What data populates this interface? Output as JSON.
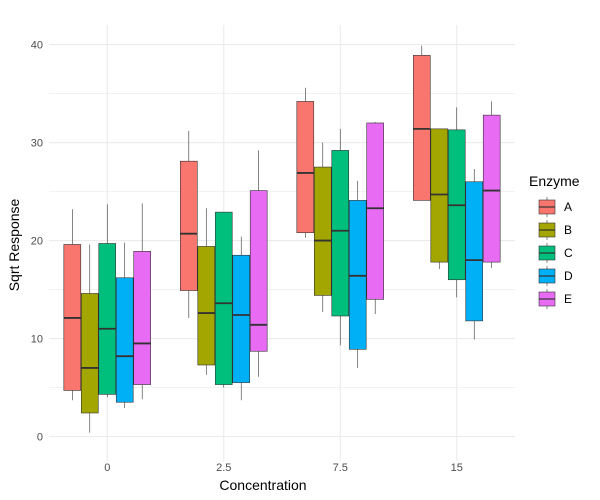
{
  "chart_data": {
    "type": "boxplot",
    "xlabel": "Concentration",
    "ylabel": "Sqrt Response",
    "categories": [
      "0",
      "2.5",
      "7.5",
      "15"
    ],
    "ylim": [
      -2.5,
      42
    ],
    "yticks": [
      0,
      10,
      20,
      30,
      40
    ],
    "grid": true,
    "legend": {
      "title": "Enzyme",
      "position": "right"
    },
    "series": [
      {
        "name": "A",
        "color": "#F8766D",
        "boxes": [
          {
            "min": 3.7,
            "q1": 4.7,
            "median": 12.1,
            "q3": 19.6,
            "max": 23.2
          },
          {
            "min": 12.1,
            "q1": 14.9,
            "median": 20.7,
            "q3": 28.1,
            "max": 31.2
          },
          {
            "min": 20.3,
            "q1": 20.8,
            "median": 26.9,
            "q3": 34.2,
            "max": 35.6
          },
          {
            "min": 24.1,
            "q1": 24.1,
            "median": 31.4,
            "q3": 38.9,
            "max": 39.9
          }
        ]
      },
      {
        "name": "B",
        "color": "#A3A500",
        "boxes": [
          {
            "min": 0.4,
            "q1": 2.4,
            "median": 7.0,
            "q3": 14.6,
            "max": 19.6
          },
          {
            "min": 6.3,
            "q1": 7.3,
            "median": 12.6,
            "q3": 19.4,
            "max": 23.3
          },
          {
            "min": 12.7,
            "q1": 14.4,
            "median": 20.0,
            "q3": 27.5,
            "max": 30.0
          },
          {
            "min": 17.1,
            "q1": 17.8,
            "median": 24.7,
            "q3": 31.4,
            "max": 31.4
          }
        ]
      },
      {
        "name": "C",
        "color": "#00BF7D",
        "boxes": [
          {
            "min": 4.0,
            "q1": 4.3,
            "median": 11.0,
            "q3": 19.7,
            "max": 23.7
          },
          {
            "min": 5.0,
            "q1": 5.3,
            "median": 13.6,
            "q3": 22.9,
            "max": 22.9
          },
          {
            "min": 9.3,
            "q1": 12.3,
            "median": 21.0,
            "q3": 29.2,
            "max": 31.4
          },
          {
            "min": 14.2,
            "q1": 16.0,
            "median": 23.6,
            "q3": 31.3,
            "max": 33.6
          }
        ]
      },
      {
        "name": "D",
        "color": "#00B0F6",
        "boxes": [
          {
            "min": 2.9,
            "q1": 3.5,
            "median": 8.2,
            "q3": 16.2,
            "max": 19.8
          },
          {
            "min": 3.7,
            "q1": 5.5,
            "median": 12.4,
            "q3": 18.5,
            "max": 20.4
          },
          {
            "min": 7.0,
            "q1": 8.9,
            "median": 16.4,
            "q3": 24.1,
            "max": 26.1
          },
          {
            "min": 9.9,
            "q1": 11.8,
            "median": 18.0,
            "q3": 26.0,
            "max": 27.3
          }
        ]
      },
      {
        "name": "E",
        "color": "#E76BF3",
        "boxes": [
          {
            "min": 3.8,
            "q1": 5.3,
            "median": 9.5,
            "q3": 18.9,
            "max": 23.8
          },
          {
            "min": 6.1,
            "q1": 8.7,
            "median": 11.4,
            "q3": 25.1,
            "max": 29.2
          },
          {
            "min": 12.5,
            "q1": 14.0,
            "median": 23.3,
            "q3": 32.0,
            "max": 32.1
          },
          {
            "min": 17.2,
            "q1": 17.8,
            "median": 25.1,
            "q3": 32.8,
            "max": 34.2
          }
        ]
      }
    ]
  }
}
